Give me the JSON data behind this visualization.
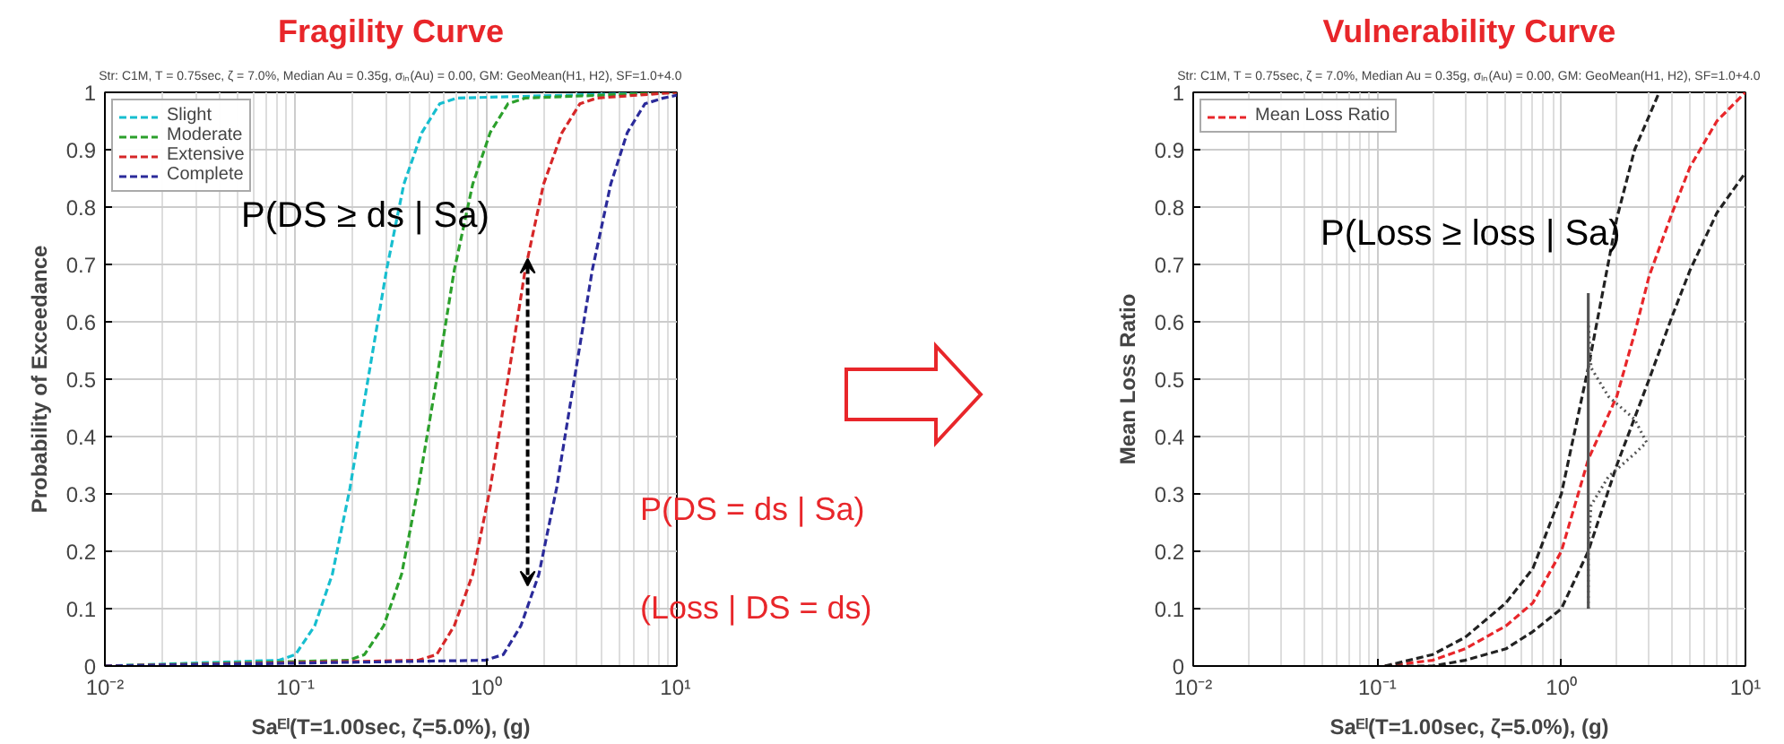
{
  "chart_data": [
    {
      "type": "line",
      "title": "Fragility Curve",
      "subtitle": "Str: C1M, T = 0.75sec, ζ = 7.0%, Median Au = 0.35g, σₗₙ(Au) = 0.00, GM: GeoMean(H1, H2), SF=1.0+4.0",
      "xlabel": "Saᴱˡ(T=1.00sec, ζ=5.0%), (g)",
      "ylabel": "Probability of Exceedance",
      "log": "x",
      "xlim": [
        0.01,
        10
      ],
      "ylim": [
        0,
        1
      ],
      "xticks": [
        {
          "value": 0.01,
          "label": "10⁻²"
        },
        {
          "value": 0.1,
          "label": "10⁻¹"
        },
        {
          "value": 1,
          "label": "10⁰"
        },
        {
          "value": 10,
          "label": "10¹"
        }
      ],
      "yticks": [
        0,
        0.1,
        0.2,
        0.3,
        0.4,
        0.5,
        0.6,
        0.7,
        0.8,
        0.9,
        1
      ],
      "grid": true,
      "legend": "top left",
      "line_style": "dashed",
      "marker": "none",
      "annotations": [
        "P(DS ≥ ds | Sa)",
        "P(DS = ds | Sa)",
        "(Loss | DS = ds)"
      ],
      "series": [
        {
          "name": "Slight",
          "color": "#17becf",
          "x": [
            0.01,
            0.082,
            0.1,
            0.126,
            0.156,
            0.193,
            0.24,
            0.3,
            0.37,
            0.46,
            0.57,
            0.7,
            10
          ],
          "values": [
            0,
            0.01,
            0.02,
            0.07,
            0.16,
            0.31,
            0.5,
            0.69,
            0.84,
            0.93,
            0.98,
            0.99,
            1
          ]
        },
        {
          "name": "Moderate",
          "color": "#2ca02c",
          "x": [
            0.01,
            0.19,
            0.23,
            0.29,
            0.36,
            0.44,
            0.55,
            0.68,
            0.85,
            1.05,
            1.3,
            1.6,
            10
          ],
          "values": [
            0,
            0.01,
            0.02,
            0.07,
            0.16,
            0.31,
            0.5,
            0.69,
            0.84,
            0.93,
            0.98,
            0.99,
            1
          ]
        },
        {
          "name": "Extensive",
          "color": "#d62728",
          "x": [
            0.01,
            0.44,
            0.55,
            0.68,
            0.85,
            1.05,
            1.3,
            1.6,
            2.0,
            2.5,
            3.1,
            3.8,
            10
          ],
          "values": [
            0,
            0.01,
            0.02,
            0.07,
            0.16,
            0.31,
            0.5,
            0.69,
            0.84,
            0.93,
            0.98,
            0.99,
            1
          ]
        },
        {
          "name": "Complete",
          "color": "#2b2b9a",
          "x": [
            0.01,
            0.99,
            1.23,
            1.52,
            1.89,
            2.34,
            2.9,
            3.6,
            4.5,
            5.5,
            6.8,
            8.5,
            10
          ],
          "values": [
            0,
            0.01,
            0.02,
            0.07,
            0.16,
            0.31,
            0.5,
            0.69,
            0.84,
            0.93,
            0.98,
            0.99,
            0.995
          ]
        }
      ]
    },
    {
      "type": "line",
      "title": "Vulnerability Curve",
      "subtitle": "Str: C1M, T = 0.75sec, ζ = 7.0%, Median Au = 0.35g, σₗₙ(Au) = 0.00, GM: GeoMean(H1, H2), SF=1.0+4.0",
      "xlabel": "Saᴱˡ(T=1.00sec, ζ=5.0%), (g)",
      "ylabel": "Mean Loss Ratio",
      "log": "x",
      "xlim": [
        0.01,
        10
      ],
      "ylim": [
        0,
        1
      ],
      "xticks": [
        {
          "value": 0.01,
          "label": "10⁻²"
        },
        {
          "value": 0.1,
          "label": "10⁻¹"
        },
        {
          "value": 1,
          "label": "10⁰"
        },
        {
          "value": 10,
          "label": "10¹"
        }
      ],
      "yticks": [
        0,
        0.1,
        0.2,
        0.3,
        0.4,
        0.5,
        0.6,
        0.7,
        0.8,
        0.9,
        1
      ],
      "grid": true,
      "legend": "top left",
      "line_style": "dashed",
      "marker": "none",
      "annotations": [
        "P(Loss ≥ loss | Sa)"
      ],
      "series": [
        {
          "name": "Mean Loss Ratio",
          "color": "#e8262a",
          "x": [
            0.11,
            0.2,
            0.3,
            0.5,
            0.7,
            1,
            1.4,
            2,
            2.5,
            3,
            4,
            5,
            7,
            10
          ],
          "values": [
            0,
            0.01,
            0.03,
            0.07,
            0.11,
            0.2,
            0.36,
            0.47,
            0.58,
            0.68,
            0.79,
            0.87,
            0.95,
            1.0
          ]
        },
        {
          "color": "#222222",
          "x": [
            0.11,
            0.2,
            0.3,
            0.5,
            0.7,
            1,
            1.4,
            2,
            2.5,
            3.4
          ],
          "values": [
            0,
            0.02,
            0.05,
            0.11,
            0.17,
            0.3,
            0.52,
            0.78,
            0.9,
            1.0
          ]
        },
        {
          "color": "#222222",
          "x": [
            0.11,
            0.2,
            0.3,
            0.5,
            0.7,
            1,
            1.4,
            2,
            3,
            4,
            5,
            7,
            10
          ],
          "values": [
            0,
            0,
            0.01,
            0.03,
            0.06,
            0.1,
            0.2,
            0.35,
            0.5,
            0.61,
            0.69,
            0.79,
            0.86
          ]
        },
        {
          "color": "#555555",
          "line_style": "solid",
          "x": [
            1.4,
            1.4
          ],
          "values": [
            0.1,
            0.65
          ]
        },
        {
          "color": "#555555",
          "line_style": "dotted",
          "x": [
            1.4,
            1.4,
            1.45,
            1.8,
            2.5,
            2.9,
            2.5,
            1.8,
            1.45,
            1.4
          ],
          "values": [
            0.1,
            0.2,
            0.28,
            0.33,
            0.37,
            0.39,
            0.43,
            0.47,
            0.52,
            0.6
          ]
        }
      ]
    }
  ]
}
